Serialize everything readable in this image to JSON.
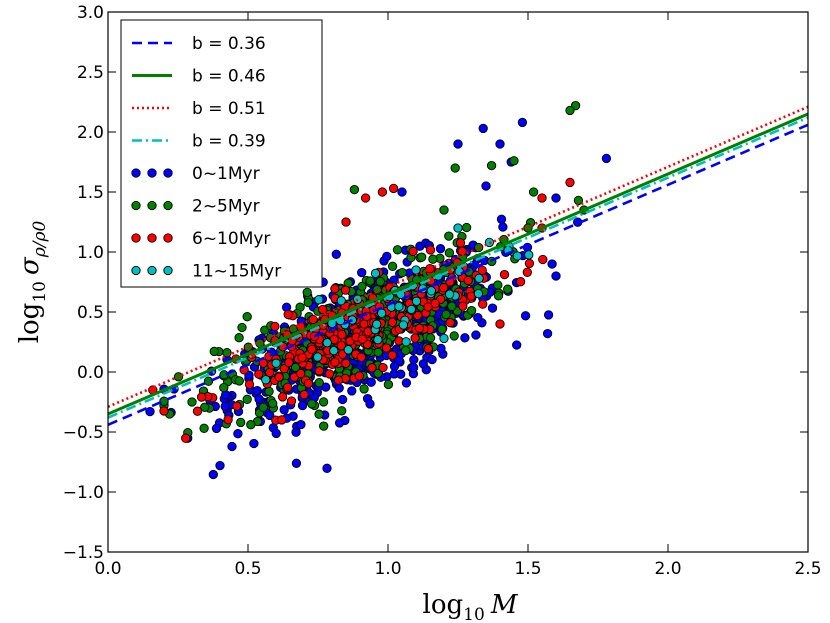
{
  "chart_data": {
    "type": "scatter",
    "title": "",
    "xlabel_text": "log",
    "xlabel_sub": "10",
    "xlabel_var": "M",
    "ylabel_text": "log",
    "ylabel_sub": "10",
    "ylabel_var": "σ",
    "ylabel_varsub": "ρ/ρ0",
    "xlim": [
      0.0,
      2.5
    ],
    "ylim": [
      -1.5,
      3.0
    ],
    "xticks": [
      0.0,
      0.5,
      1.0,
      1.5,
      2.0,
      2.5
    ],
    "xtick_labels": [
      "0.0",
      "0.5",
      "1.0",
      "1.5",
      "2.0",
      "2.5"
    ],
    "yticks": [
      -1.5,
      -1.0,
      -0.5,
      0.0,
      0.5,
      1.0,
      1.5,
      2.0,
      2.5,
      3.0
    ],
    "ytick_labels": [
      "−1.5",
      "−1.0",
      "−0.5",
      "0.0",
      "0.5",
      "1.0",
      "1.5",
      "2.0",
      "2.5",
      "3.0"
    ],
    "grid": false,
    "legend_position": "top-left",
    "fit_lines": [
      {
        "name": "b = 0.36",
        "slope": 1.0,
        "intercept": -0.44,
        "color": "#0000ff",
        "style": "dashed"
      },
      {
        "name": "b = 0.46",
        "slope": 1.0,
        "intercept": -0.35,
        "color": "#008000",
        "style": "solid"
      },
      {
        "name": "b = 0.51",
        "slope": 1.0,
        "intercept": -0.29,
        "color": "#ff0000",
        "style": "dotted"
      },
      {
        "name": "b = 0.39",
        "slope": 1.0,
        "intercept": -0.38,
        "color": "#00bfbf",
        "style": "dashdot"
      }
    ],
    "series": [
      {
        "name": "0~1Myr",
        "color": "#0000ff",
        "count": 620,
        "center": [
          0.92,
          0.3
        ],
        "spread_x": 0.24,
        "resid_sd": 0.24,
        "extra_points": [
          [
            1.34,
            2.03
          ],
          [
            1.48,
            2.08
          ],
          [
            1.4,
            1.9
          ],
          [
            1.57,
            0.32
          ],
          [
            1.3,
            0.85
          ],
          [
            0.4,
            -0.78
          ],
          [
            1.78,
            1.78
          ],
          [
            1.05,
            1.5
          ],
          [
            1.6,
            1.45
          ],
          [
            0.15,
            -0.33
          ],
          [
            1.6,
            0.8
          ],
          [
            1.25,
            1.9
          ],
          [
            1.44,
            1.75
          ],
          [
            1.35,
            1.55
          ],
          [
            0.2,
            -0.25
          ]
        ]
      },
      {
        "name": "2~5Myr",
        "color": "#008000",
        "count": 420,
        "center": [
          0.88,
          0.35
        ],
        "spread_x": 0.24,
        "resid_sd": 0.22,
        "extra_points": [
          [
            1.67,
            2.22
          ],
          [
            1.65,
            2.18
          ],
          [
            1.37,
            1.72
          ],
          [
            1.45,
            1.76
          ],
          [
            0.88,
            1.52
          ],
          [
            1.52,
            1.5
          ],
          [
            1.2,
            1.35
          ],
          [
            0.3,
            -0.25
          ],
          [
            1.68,
            1.43
          ],
          [
            1.7,
            1.35
          ],
          [
            1.5,
            1.2
          ],
          [
            1.24,
            1.7
          ],
          [
            0.22,
            -0.35
          ]
        ]
      },
      {
        "name": "6~10Myr",
        "color": "#ff0000",
        "count": 300,
        "center": [
          0.9,
          0.35
        ],
        "spread_x": 0.22,
        "resid_sd": 0.16,
        "extra_points": [
          [
            1.02,
            1.53
          ],
          [
            0.98,
            1.5
          ],
          [
            0.92,
            1.45
          ],
          [
            1.55,
            1.2
          ],
          [
            1.65,
            1.58
          ],
          [
            0.16,
            -0.15
          ],
          [
            1.4,
            0.4
          ],
          [
            1.55,
            1.45
          ],
          [
            0.85,
            1.25
          ]
        ]
      },
      {
        "name": "11~15Myr",
        "color": "#00bfbf",
        "count": 45,
        "center": [
          1.05,
          0.55
        ],
        "spread_x": 0.2,
        "resid_sd": 0.14,
        "extra_points": [
          [
            1.2,
            0.28
          ],
          [
            1.25,
            1.2
          ],
          [
            1.1,
            0.85
          ]
        ]
      }
    ]
  }
}
